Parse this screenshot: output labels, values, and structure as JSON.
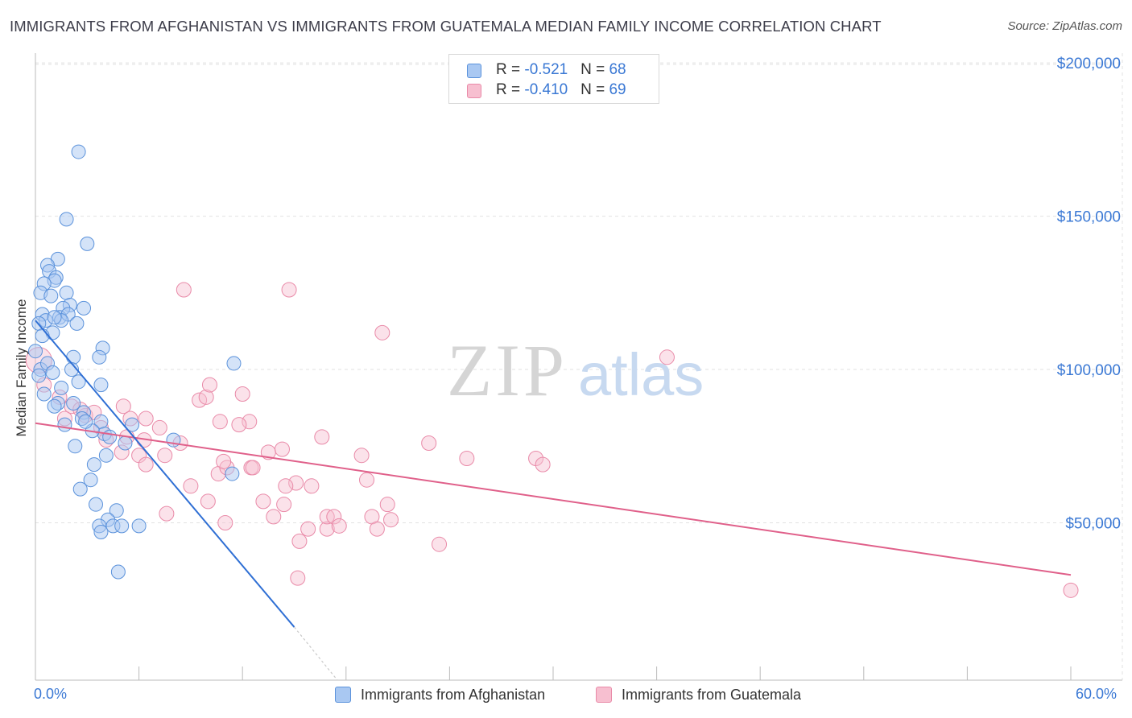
{
  "header": {
    "title": "IMMIGRANTS FROM AFGHANISTAN VS IMMIGRANTS FROM GUATEMALA MEDIAN FAMILY INCOME CORRELATION CHART",
    "source": "Source: ZipAtlas.com"
  },
  "watermark": {
    "zip": "ZIP",
    "atlas": "atlas"
  },
  "legend_top": {
    "rows": [
      {
        "r_label": "R = ",
        "r_value": "-0.521",
        "n_label": "N = ",
        "n_value": "68"
      },
      {
        "r_label": "R = ",
        "r_value": "-0.410",
        "n_label": "N = ",
        "n_value": "69"
      }
    ]
  },
  "colors": {
    "afghanistan_fill": "#a9c8f2",
    "afghanistan_stroke": "#5b92db",
    "afghanistan_line": "#2f6fd4",
    "guatemala_fill": "#f7bfd0",
    "guatemala_stroke": "#e98aa8",
    "guatemala_line": "#e0608a",
    "grid": "#e2e2e2",
    "tick_label": "#3a78d4"
  },
  "chart_data": {
    "type": "scatter",
    "title": "IMMIGRANTS FROM AFGHANISTAN VS IMMIGRANTS FROM GUATEMALA MEDIAN FAMILY INCOME CORRELATION CHART",
    "xlabel": "",
    "ylabel": "Median Family Income",
    "xlim": [
      0,
      60
    ],
    "ylim": [
      0,
      210000
    ],
    "x_tick_labels": [
      "0.0%",
      "60.0%"
    ],
    "y_ticks": [
      50000,
      100000,
      150000,
      200000
    ],
    "y_tick_labels": [
      "$50,000",
      "$100,000",
      "$150,000",
      "$200,000"
    ],
    "grid": true,
    "legend_position": "bottom",
    "series": [
      {
        "name": "Immigrants from Afghanistan",
        "r": -0.521,
        "n": 68,
        "trend": {
          "x": [
            0.0,
            15.0
          ],
          "y": [
            116000,
            16000
          ],
          "dashed_to": [
            17.5,
            0
          ]
        },
        "points": [
          [
            2.5,
            171000
          ],
          [
            1.8,
            149000
          ],
          [
            3.0,
            141000
          ],
          [
            1.3,
            136000
          ],
          [
            0.7,
            134000
          ],
          [
            0.8,
            132000
          ],
          [
            1.2,
            130000
          ],
          [
            1.1,
            129000
          ],
          [
            0.5,
            128000
          ],
          [
            0.3,
            125000
          ],
          [
            0.9,
            124000
          ],
          [
            1.8,
            125000
          ],
          [
            0.4,
            118000
          ],
          [
            2.0,
            121000
          ],
          [
            2.8,
            120000
          ],
          [
            1.6,
            120000
          ],
          [
            1.4,
            117000
          ],
          [
            0.6,
            116000
          ],
          [
            1.9,
            118000
          ],
          [
            1.5,
            116000
          ],
          [
            1.1,
            117000
          ],
          [
            2.4,
            115000
          ],
          [
            0.2,
            115000
          ],
          [
            1.0,
            112000
          ],
          [
            0.4,
            111000
          ],
          [
            3.9,
            107000
          ],
          [
            2.2,
            104000
          ],
          [
            0.0,
            106000
          ],
          [
            3.7,
            104000
          ],
          [
            11.5,
            102000
          ],
          [
            2.1,
            100000
          ],
          [
            0.3,
            100000
          ],
          [
            0.2,
            98000
          ],
          [
            2.5,
            96000
          ],
          [
            3.8,
            95000
          ],
          [
            0.5,
            92000
          ],
          [
            1.3,
            89000
          ],
          [
            1.1,
            88000
          ],
          [
            2.2,
            89000
          ],
          [
            2.8,
            86000
          ],
          [
            2.7,
            84000
          ],
          [
            3.8,
            83000
          ],
          [
            5.6,
            82000
          ],
          [
            4.0,
            79000
          ],
          [
            8.0,
            77000
          ],
          [
            5.2,
            76000
          ],
          [
            4.3,
            78000
          ],
          [
            2.3,
            75000
          ],
          [
            3.4,
            69000
          ],
          [
            4.1,
            72000
          ],
          [
            3.2,
            64000
          ],
          [
            2.6,
            61000
          ],
          [
            11.4,
            66000
          ],
          [
            3.5,
            56000
          ],
          [
            4.7,
            54000
          ],
          [
            4.2,
            51000
          ],
          [
            3.7,
            49000
          ],
          [
            4.5,
            49000
          ],
          [
            5.0,
            49000
          ],
          [
            6.0,
            49000
          ],
          [
            3.8,
            47000
          ],
          [
            4.8,
            34000
          ],
          [
            1.7,
            82000
          ],
          [
            3.3,
            80000
          ],
          [
            2.9,
            83000
          ],
          [
            1.5,
            94000
          ],
          [
            0.7,
            102000
          ],
          [
            1.0,
            99000
          ]
        ]
      },
      {
        "name": "Immigrants from Guatemala",
        "r": -0.41,
        "n": 69,
        "trend": {
          "x": [
            0.0,
            60.0
          ],
          "y": [
            82500,
            33000
          ]
        },
        "points": [
          [
            0.2,
            103000
          ],
          [
            0.5,
            95000
          ],
          [
            1.4,
            91000
          ],
          [
            2.1,
            88000
          ],
          [
            2.9,
            85000
          ],
          [
            1.7,
            84000
          ],
          [
            2.6,
            87000
          ],
          [
            3.4,
            86000
          ],
          [
            5.1,
            88000
          ],
          [
            5.5,
            84000
          ],
          [
            6.4,
            84000
          ],
          [
            4.1,
            77000
          ],
          [
            5.3,
            78000
          ],
          [
            6.3,
            77000
          ],
          [
            7.5,
            72000
          ],
          [
            6.0,
            72000
          ],
          [
            6.4,
            69000
          ],
          [
            5.0,
            73000
          ],
          [
            9.5,
            90000
          ],
          [
            9.9,
            91000
          ],
          [
            10.7,
            83000
          ],
          [
            12.4,
            83000
          ],
          [
            11.8,
            82000
          ],
          [
            12.0,
            92000
          ],
          [
            13.5,
            73000
          ],
          [
            14.3,
            74000
          ],
          [
            9.0,
            62000
          ],
          [
            10.0,
            57000
          ],
          [
            10.6,
            66000
          ],
          [
            11.1,
            68000
          ],
          [
            10.9,
            70000
          ],
          [
            12.5,
            68000
          ],
          [
            11.0,
            50000
          ],
          [
            12.6,
            68000
          ],
          [
            13.2,
            57000
          ],
          [
            14.4,
            56000
          ],
          [
            13.8,
            52000
          ],
          [
            15.1,
            63000
          ],
          [
            14.5,
            62000
          ],
          [
            15.8,
            48000
          ],
          [
            15.3,
            44000
          ],
          [
            15.2,
            32000
          ],
          [
            16.0,
            62000
          ],
          [
            16.6,
            78000
          ],
          [
            16.9,
            48000
          ],
          [
            16.9,
            52000
          ],
          [
            17.3,
            52000
          ],
          [
            17.6,
            49000
          ],
          [
            18.9,
            72000
          ],
          [
            19.2,
            64000
          ],
          [
            19.5,
            52000
          ],
          [
            19.8,
            48000
          ],
          [
            20.4,
            56000
          ],
          [
            20.6,
            51000
          ],
          [
            20.1,
            112000
          ],
          [
            8.6,
            126000
          ],
          [
            14.7,
            126000
          ],
          [
            22.8,
            76000
          ],
          [
            23.4,
            43000
          ],
          [
            25.0,
            71000
          ],
          [
            29.0,
            71000
          ],
          [
            29.4,
            69000
          ],
          [
            36.6,
            104000
          ],
          [
            60.0,
            28000
          ],
          [
            8.4,
            76000
          ],
          [
            7.6,
            53000
          ],
          [
            10.1,
            95000
          ],
          [
            3.8,
            81000
          ],
          [
            7.2,
            81000
          ]
        ]
      }
    ]
  },
  "bottom_legend": {
    "items": [
      "Immigrants from Afghanistan",
      "Immigrants from Guatemala"
    ]
  }
}
